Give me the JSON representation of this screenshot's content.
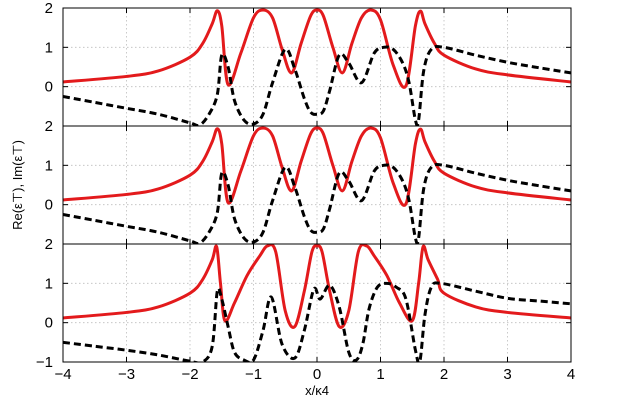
{
  "chart_data": [
    {
      "type": "line",
      "panel": "top",
      "xlim": [
        -4,
        4
      ],
      "ylim": [
        -1,
        2
      ],
      "yticks": [
        "2",
        "1",
        "0"
      ],
      "xticks": [],
      "grid": true,
      "series": [
        {
          "color": "#e31a1c",
          "style": "solid",
          "x": [
            -4,
            -3,
            -2.5,
            -2,
            -1.8,
            -1.65,
            -1.57,
            -1.5,
            -1.4,
            -1.2,
            -1.0,
            -0.85,
            -0.7,
            -0.55,
            -0.4,
            -0.25,
            -0.1,
            0,
            0.1,
            0.25,
            0.4,
            0.55,
            0.7,
            0.85,
            1.0,
            1.2,
            1.4,
            1.55,
            1.63,
            1.7,
            1.85,
            2.0,
            2.5,
            3.0,
            4.0
          ],
          "y": [
            0.12,
            0.26,
            0.4,
            0.75,
            1.1,
            1.6,
            1.93,
            1.55,
            0.05,
            0.85,
            1.75,
            1.95,
            1.75,
            0.95,
            0.35,
            1.1,
            1.8,
            1.95,
            1.8,
            1.0,
            0.35,
            1.1,
            1.75,
            1.95,
            1.7,
            0.55,
            0.02,
            1.55,
            1.92,
            1.6,
            1.1,
            0.8,
            0.45,
            0.3,
            0.12
          ]
        },
        {
          "color": "#000000",
          "style": "dashed",
          "x": [
            -4,
            -3.5,
            -3,
            -2.5,
            -2,
            -1.85,
            -1.7,
            -1.57,
            -1.5,
            -1.4,
            -1.3,
            -1.15,
            -1.0,
            -0.85,
            -0.7,
            -0.5,
            -0.35,
            -0.2,
            -0.1,
            0,
            0.1,
            0.2,
            0.35,
            0.5,
            0.7,
            0.9,
            1.05,
            1.2,
            1.35,
            1.45,
            1.55,
            1.6,
            1.68,
            1.8,
            2.0,
            2.5,
            3.0,
            3.5,
            4.0
          ],
          "y": [
            -0.25,
            -0.4,
            -0.55,
            -0.7,
            -0.92,
            -0.98,
            -0.7,
            -0.2,
            0.8,
            0.5,
            -0.35,
            -0.85,
            -0.95,
            -0.7,
            0.1,
            0.95,
            0.45,
            -0.3,
            -0.65,
            -0.7,
            -0.62,
            -0.1,
            0.8,
            0.6,
            0.1,
            0.85,
            1.0,
            0.95,
            0.6,
            0.1,
            -0.85,
            -0.85,
            0.4,
            0.95,
            1.0,
            0.8,
            0.62,
            0.48,
            0.35
          ]
        }
      ]
    },
    {
      "type": "line",
      "panel": "middle",
      "xlim": [
        -4,
        4
      ],
      "ylim": [
        -1,
        2
      ],
      "yticks": [
        "2",
        "1",
        "0"
      ],
      "xticks": [],
      "ylabel": "Re(ε⊤),   Im(ε⊤)",
      "grid": true,
      "series": [
        {
          "color": "#e31a1c",
          "style": "solid",
          "x": [
            -4,
            -3,
            -2.5,
            -2,
            -1.8,
            -1.65,
            -1.57,
            -1.5,
            -1.4,
            -1.2,
            -1.0,
            -0.85,
            -0.7,
            -0.55,
            -0.4,
            -0.25,
            -0.1,
            0,
            0.1,
            0.25,
            0.4,
            0.55,
            0.7,
            0.85,
            1.0,
            1.2,
            1.4,
            1.55,
            1.63,
            1.7,
            1.85,
            2.0,
            2.5,
            3.0,
            4.0
          ],
          "y": [
            0.12,
            0.26,
            0.4,
            0.75,
            1.1,
            1.6,
            1.93,
            1.55,
            0.05,
            0.85,
            1.75,
            1.95,
            1.75,
            0.95,
            0.35,
            1.1,
            1.8,
            1.95,
            1.8,
            1.0,
            0.35,
            1.1,
            1.75,
            1.95,
            1.7,
            0.55,
            0.02,
            1.55,
            1.92,
            1.6,
            1.1,
            0.8,
            0.45,
            0.3,
            0.12
          ]
        },
        {
          "color": "#000000",
          "style": "dashed",
          "x": [
            -4,
            -3.5,
            -3,
            -2.5,
            -2,
            -1.85,
            -1.7,
            -1.57,
            -1.5,
            -1.4,
            -1.3,
            -1.15,
            -1.0,
            -0.85,
            -0.7,
            -0.5,
            -0.35,
            -0.2,
            -0.1,
            0,
            0.1,
            0.2,
            0.35,
            0.5,
            0.7,
            0.9,
            1.05,
            1.2,
            1.35,
            1.45,
            1.55,
            1.6,
            1.68,
            1.8,
            2.0,
            2.5,
            3.0,
            3.5,
            4.0
          ],
          "y": [
            -0.25,
            -0.4,
            -0.55,
            -0.7,
            -0.92,
            -0.98,
            -0.7,
            -0.2,
            0.8,
            0.5,
            -0.35,
            -0.85,
            -0.95,
            -0.7,
            0.1,
            0.95,
            0.45,
            -0.3,
            -0.65,
            -0.7,
            -0.62,
            -0.1,
            0.8,
            0.6,
            0.1,
            0.85,
            1.0,
            0.95,
            0.6,
            0.1,
            -0.85,
            -0.85,
            0.4,
            0.95,
            1.0,
            0.8,
            0.62,
            0.48,
            0.35
          ]
        }
      ]
    },
    {
      "type": "line",
      "panel": "bottom",
      "xlim": [
        -4,
        4
      ],
      "ylim": [
        -1,
        2
      ],
      "yticks": [
        "2",
        "1",
        "0",
        "−1"
      ],
      "xticks": [
        "−4",
        "−3",
        "−2",
        "−1",
        "0",
        "1",
        "2",
        "3",
        "4"
      ],
      "xlabel": "x/κ4",
      "grid": true,
      "series": [
        {
          "color": "#e31a1c",
          "style": "solid",
          "x": [
            -4,
            -3,
            -2.5,
            -2,
            -1.8,
            -1.65,
            -1.58,
            -1.52,
            -1.45,
            -1.3,
            -1.1,
            -0.9,
            -0.78,
            -0.65,
            -0.5,
            -0.35,
            -0.2,
            -0.08,
            0,
            0.08,
            0.2,
            0.35,
            0.5,
            0.65,
            0.78,
            0.9,
            1.1,
            1.3,
            1.5,
            1.6,
            1.67,
            1.75,
            1.9,
            2.0,
            2.5,
            3.0,
            4.0
          ],
          "y": [
            0.12,
            0.26,
            0.4,
            0.75,
            1.1,
            1.6,
            1.93,
            1.0,
            0.05,
            0.5,
            1.2,
            1.7,
            1.95,
            1.8,
            0.3,
            -0.1,
            0.8,
            1.8,
            1.95,
            1.8,
            0.8,
            -0.1,
            0.3,
            1.8,
            1.95,
            1.7,
            1.2,
            0.5,
            0.05,
            1.0,
            1.93,
            1.6,
            1.1,
            0.75,
            0.4,
            0.26,
            0.12
          ]
        },
        {
          "color": "#000000",
          "style": "dashed",
          "x": [
            -4,
            -3.5,
            -3,
            -2.5,
            -2,
            -1.8,
            -1.65,
            -1.57,
            -1.5,
            -1.4,
            -1.3,
            -1.15,
            -1.0,
            -0.85,
            -0.72,
            -0.55,
            -0.35,
            -0.2,
            -0.05,
            0.05,
            0.2,
            0.35,
            0.5,
            0.62,
            0.72,
            0.82,
            0.95,
            1.1,
            1.25,
            1.4,
            1.55,
            1.62,
            1.7,
            1.8,
            1.95,
            2.5,
            3.0,
            3.5,
            4.0
          ],
          "y": [
            -0.5,
            -0.6,
            -0.7,
            -0.82,
            -0.98,
            -1.0,
            -0.6,
            0.8,
            0.6,
            -0.1,
            -0.75,
            -0.95,
            -0.95,
            -0.2,
            0.65,
            -0.55,
            -0.9,
            -0.2,
            0.85,
            0.6,
            0.95,
            0.4,
            -0.75,
            -0.95,
            -0.55,
            0.35,
            0.9,
            1.0,
            0.9,
            0.6,
            -0.7,
            -0.98,
            0.2,
            0.9,
            1.0,
            0.8,
            0.62,
            0.55,
            0.48
          ]
        }
      ]
    }
  ]
}
